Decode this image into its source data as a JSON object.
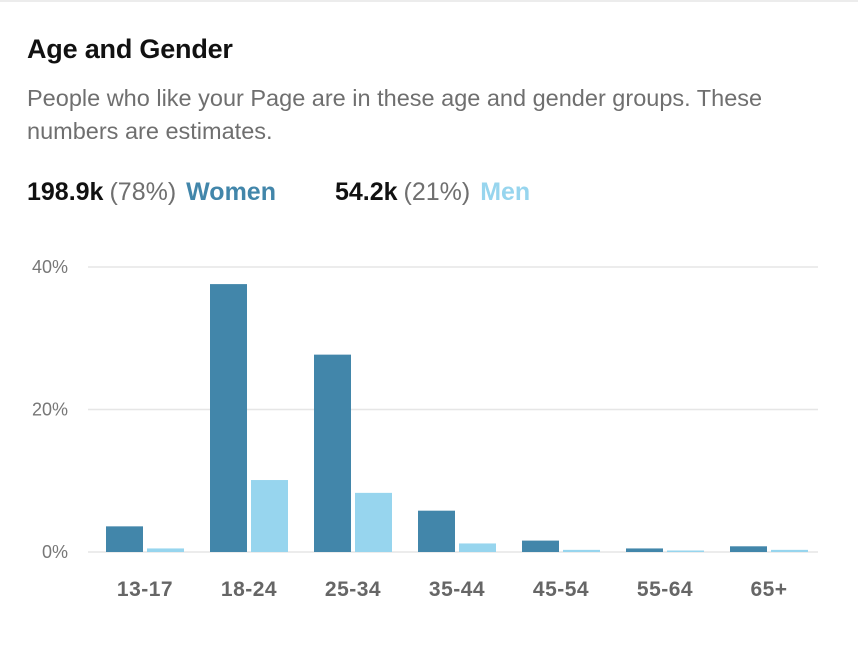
{
  "header": {
    "title": "Age and Gender",
    "subtitle": "People who like your Page are in these age and gender groups. These numbers are estimates."
  },
  "summary": {
    "women": {
      "count": "198.9k",
      "percent": "(78%)",
      "label": "Women",
      "color": "#4286aa"
    },
    "men": {
      "count": "54.2k",
      "percent": "(21%)",
      "label": "Men",
      "color": "#97d5ee"
    }
  },
  "chart_data": {
    "type": "bar",
    "categories": [
      "13-17",
      "18-24",
      "25-34",
      "35-44",
      "45-54",
      "55-64",
      "65+"
    ],
    "series": [
      {
        "name": "Women",
        "color": "#4286aa",
        "values": [
          3.6,
          37.6,
          27.7,
          5.8,
          1.6,
          0.5,
          0.8
        ]
      },
      {
        "name": "Men",
        "color": "#97d5ee",
        "values": [
          0.5,
          10.1,
          8.3,
          1.2,
          0.3,
          0.2,
          0.3
        ]
      }
    ],
    "yticks": [
      {
        "value": 0,
        "label": "0%"
      },
      {
        "value": 20,
        "label": "20%"
      },
      {
        "value": 40,
        "label": "40%"
      }
    ],
    "ylim": [
      0,
      40
    ],
    "grid": true,
    "legend": "top"
  }
}
